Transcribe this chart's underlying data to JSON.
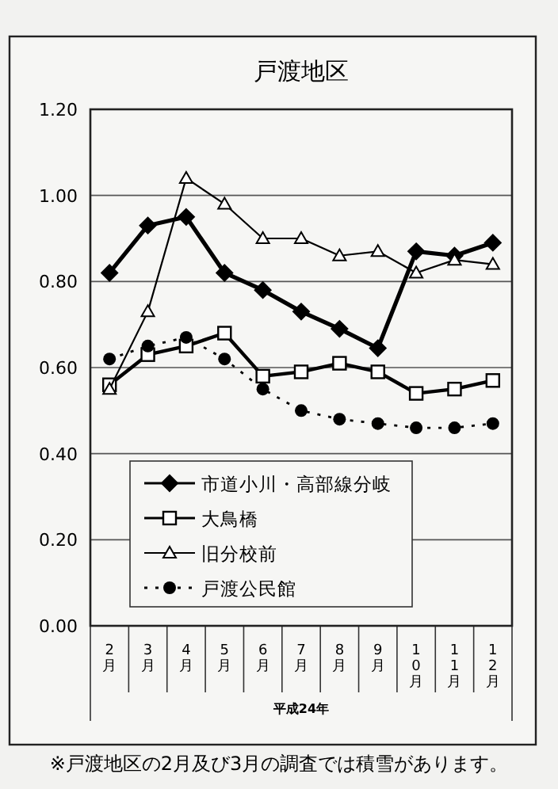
{
  "chart_data": {
    "type": "line",
    "title": "戸渡地区",
    "xlabel": "平成24年",
    "categories": [
      "2月",
      "3月",
      "4月",
      "5月",
      "6月",
      "7月",
      "8月",
      "9月",
      "10月",
      "11月",
      "12月"
    ],
    "series": [
      {
        "name": "市道小川・高部線分岐",
        "color": "#000000",
        "marker": "diamond",
        "line_style": "solid",
        "values": [
          0.82,
          0.93,
          0.95,
          0.82,
          0.78,
          0.73,
          0.69,
          0.645,
          0.87,
          0.86,
          0.89
        ]
      },
      {
        "name": "大鳥橋",
        "color": "#000000",
        "marker": "square",
        "line_style": "solid",
        "values": [
          0.56,
          0.63,
          0.65,
          0.68,
          0.58,
          0.59,
          0.61,
          0.59,
          0.54,
          0.55,
          0.57
        ]
      },
      {
        "name": "旧分校前",
        "color": "#000000",
        "marker": "triangle",
        "line_style": "solid",
        "values": [
          0.55,
          0.73,
          1.04,
          0.98,
          0.9,
          0.9,
          0.86,
          0.87,
          0.82,
          0.85,
          0.84
        ]
      },
      {
        "name": "戸渡公民館",
        "color": "#000000",
        "marker": "circle",
        "line_style": "dotted",
        "values": [
          0.62,
          0.65,
          0.67,
          0.62,
          0.55,
          0.5,
          0.48,
          0.47,
          0.46,
          0.46,
          0.47
        ]
      }
    ],
    "ylim": [
      0,
      1.2
    ],
    "yticks": [
      {
        "value": 0,
        "label": "0.00"
      },
      {
        "value": 0.2,
        "label": "0.20"
      },
      {
        "value": 0.4,
        "label": "0.40"
      },
      {
        "value": 0.6,
        "label": "0.60"
      },
      {
        "value": 0.8,
        "label": "0.80"
      },
      {
        "value": 1.0,
        "label": "1.00"
      },
      {
        "value": 1.2,
        "label": "1.20"
      }
    ],
    "grid": "y",
    "legend": "bottom left",
    "annotations": [
      "※戸渡地区の2月及び3月の調査では積雪があります。"
    ]
  }
}
